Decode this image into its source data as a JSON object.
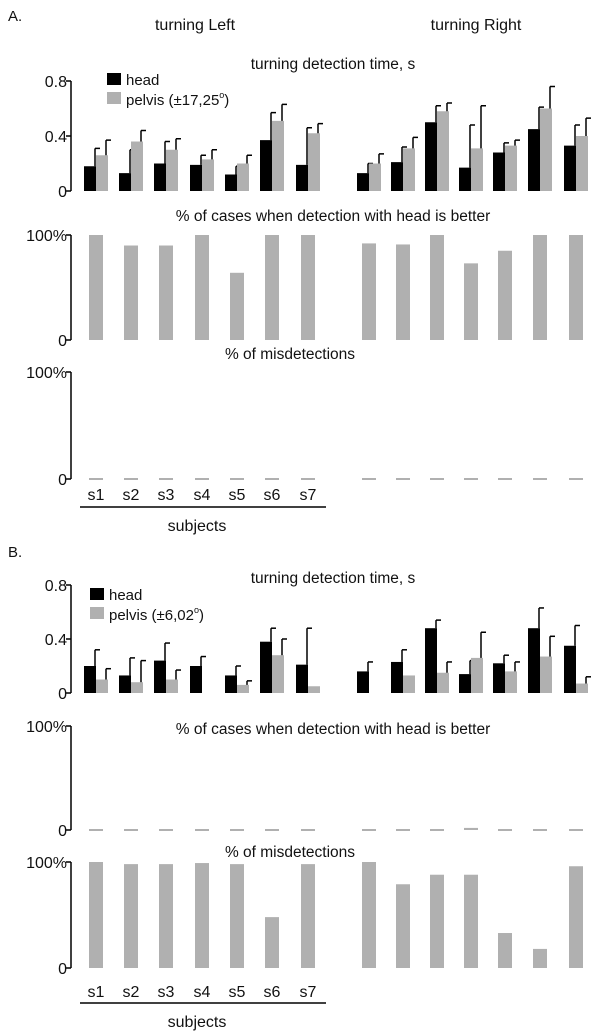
{
  "figure": {
    "subjects_label": "subjects",
    "subject_ticks": [
      "s1",
      "s2",
      "s3",
      "s4",
      "s5",
      "s6",
      "s7"
    ],
    "headers": {
      "left": "turning Left",
      "right": "turning Right"
    },
    "colors": {
      "head": "#000000",
      "pelvis": "#b0b0b0"
    }
  },
  "chart_data": [
    {
      "panel": "A.",
      "type": "bar",
      "title": "turning detection time, s",
      "ylim": [
        0,
        0.8
      ],
      "yticks": [
        "0.8",
        "0.4",
        "0"
      ],
      "legend": {
        "placement": "top-left",
        "head": "head",
        "pelvis": "pelvis (±17,25",
        "degree": "o",
        "close": ")"
      },
      "categories": [
        "L-s1",
        "L-s2",
        "L-s3",
        "L-s4",
        "L-s5",
        "L-s6",
        "L-s7",
        "R-s1",
        "R-s2",
        "R-s3",
        "R-s4",
        "R-s5",
        "R-s6",
        "R-s7"
      ],
      "series": [
        {
          "name": "head",
          "values": [
            0.18,
            0.13,
            0.2,
            0.19,
            0.12,
            0.37,
            0.19,
            0.13,
            0.21,
            0.5,
            0.17,
            0.28,
            0.45,
            0.33
          ],
          "errors": [
            0.13,
            0.17,
            0.16,
            0.07,
            0.06,
            0.2,
            0.27,
            0.07,
            0.11,
            0.12,
            0.31,
            0.07,
            0.16,
            0.15
          ]
        },
        {
          "name": "pelvis",
          "values": [
            0.26,
            0.36,
            0.3,
            0.23,
            0.2,
            0.51,
            0.42,
            0.2,
            0.31,
            0.58,
            0.31,
            0.33,
            0.6,
            0.4
          ],
          "errors": [
            0.11,
            0.08,
            0.08,
            0.07,
            0.06,
            0.12,
            0.07,
            0.07,
            0.08,
            0.06,
            0.31,
            0.04,
            0.16,
            0.13
          ]
        }
      ]
    },
    {
      "panel": "A.",
      "type": "bar",
      "title": "% of cases when detection with head is better",
      "ylim": [
        0,
        100
      ],
      "yticks": [
        "100%",
        "0"
      ],
      "values": [
        100,
        90,
        90,
        100,
        64,
        100,
        100,
        92,
        91,
        100,
        73,
        85,
        100,
        100
      ]
    },
    {
      "panel": "A.",
      "type": "bar",
      "title": "% of misdetections",
      "ylim": [
        0,
        100
      ],
      "yticks": [
        "100%",
        "0"
      ],
      "values": [
        0,
        0,
        0,
        0,
        0,
        0,
        0,
        0,
        0,
        0,
        0,
        0,
        0,
        0
      ]
    },
    {
      "panel": "B.",
      "type": "bar",
      "title": "turning detection time, s",
      "ylim": [
        0,
        0.8
      ],
      "yticks": [
        "0.8",
        "0.4",
        "0"
      ],
      "legend": {
        "placement": "top-left",
        "head": "head",
        "pelvis": "pelvis (±6,02",
        "degree": "o",
        "close": ")"
      },
      "categories": [
        "L-s1",
        "L-s2",
        "L-s3",
        "L-s4",
        "L-s5",
        "L-s6",
        "L-s7",
        "R-s1",
        "R-s2",
        "R-s3",
        "R-s4",
        "R-s5",
        "R-s6",
        "R-s7"
      ],
      "series": [
        {
          "name": "head",
          "values": [
            0.2,
            0.13,
            0.24,
            0.2,
            0.13,
            0.38,
            0.21,
            0.16,
            0.23,
            0.48,
            0.14,
            0.22,
            0.48,
            0.35
          ],
          "errors": [
            0.12,
            0.13,
            0.13,
            0.07,
            0.07,
            0.1,
            0.27,
            0.07,
            0.09,
            0.06,
            0.1,
            0.06,
            0.15,
            0.15
          ]
        },
        {
          "name": "pelvis",
          "values": [
            0.1,
            0.08,
            0.1,
            0,
            0.06,
            0.28,
            0.05,
            0,
            0.13,
            0.15,
            0.26,
            0.16,
            0.27,
            0.07
          ],
          "errors": [
            0.08,
            0.16,
            0.07,
            0,
            0.03,
            0.12,
            0,
            0,
            0,
            0.08,
            0.19,
            0.07,
            0.15,
            0.05
          ]
        }
      ]
    },
    {
      "panel": "B.",
      "type": "bar",
      "title": "% of cases when detection with head is better",
      "ylim": [
        0,
        100
      ],
      "yticks": [
        "100%",
        "0"
      ],
      "values": [
        0,
        0,
        0,
        0,
        0,
        0,
        0,
        0,
        0,
        0,
        2,
        0,
        0,
        0
      ]
    },
    {
      "panel": "B.",
      "type": "bar",
      "title": "% of misdetections",
      "ylim": [
        0,
        100
      ],
      "yticks": [
        "100%",
        "0"
      ],
      "values": [
        100,
        98,
        98,
        99,
        98,
        48,
        98,
        100,
        79,
        88,
        88,
        33,
        18,
        96
      ]
    }
  ]
}
